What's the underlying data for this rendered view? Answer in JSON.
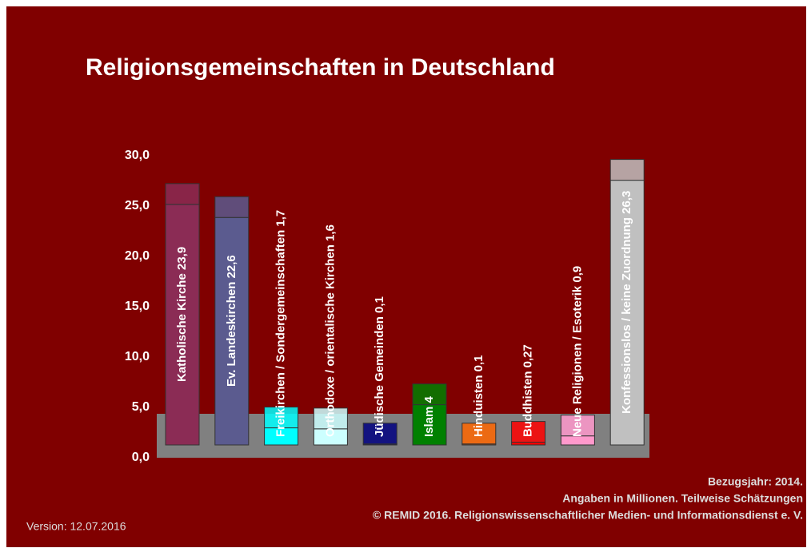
{
  "chart_data": {
    "type": "bar",
    "title": "Religionsgemeinschaften in Deutschland",
    "categories": [
      "Katholische Kirche",
      "Ev. Landeskirchen",
      "Freikirchen / Sondergemeinschaften",
      "Orthodoxe / orientalische Kirchen",
      "Jüdische Gemeinden",
      "Islam",
      "Hinduisten",
      "Buddhisten",
      "Neue Religionen / Esoterik",
      "Konfessionslos / keine Zuordnung"
    ],
    "values": [
      23.9,
      22.6,
      1.7,
      1.6,
      0.1,
      4,
      0.1,
      0.27,
      0.9,
      26.3
    ],
    "value_labels": [
      "23,9",
      "22,6",
      "1,7",
      "1,6",
      "0,1",
      "4",
      "0,1",
      "0,27",
      "0,9",
      "26,3"
    ],
    "colors": [
      "#8b2c55",
      "#5b5b8f",
      "#00ffff",
      "#ccffff",
      "#000080",
      "#008000",
      "#ff6600",
      "#ff0000",
      "#ff99cc",
      "#c0c0c0"
    ],
    "ylim": [
      0,
      30
    ],
    "yticks": [
      {
        "value": 0,
        "label": "0,0"
      },
      {
        "value": 5,
        "label": "5,0"
      },
      {
        "value": 10,
        "label": "10,0"
      },
      {
        "value": 15,
        "label": "15,0"
      },
      {
        "value": 20,
        "label": "20,0"
      },
      {
        "value": 25,
        "label": "25,0"
      },
      {
        "value": 30,
        "label": "30,0"
      }
    ],
    "notes": [
      "Bezugsjahr: 2014.",
      "Angaben in Millionen. Teilweise Schätzungen",
      "© REMID 2016. Religionswissenschaftlicher Medien- und Informationsdienst e. V."
    ],
    "version": "Version: 12.07.2016"
  }
}
